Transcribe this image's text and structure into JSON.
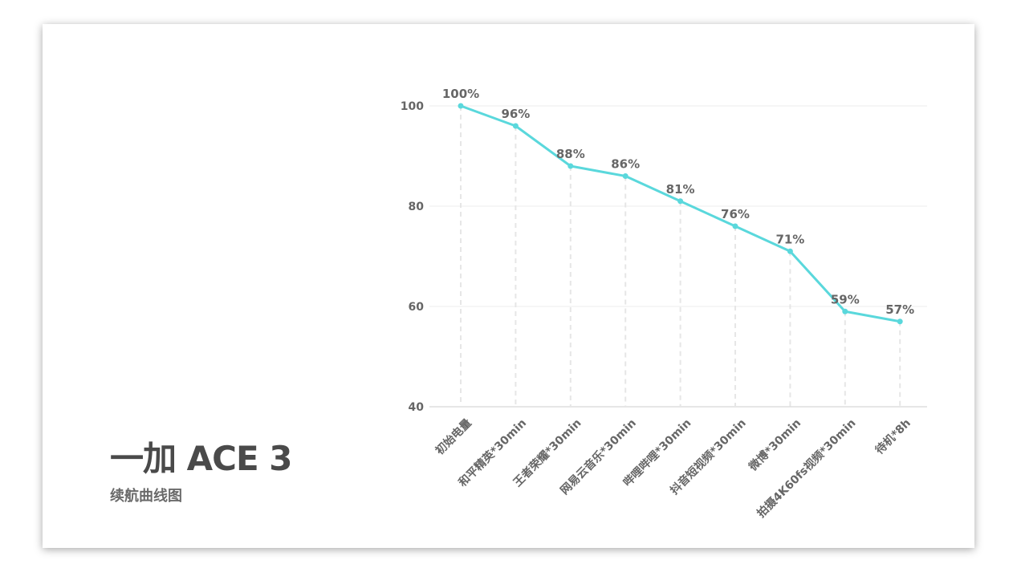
{
  "title": "一加 ACE 3",
  "subtitle": "续航曲线图",
  "chart_data": {
    "type": "line",
    "title": "续航曲线图",
    "categories": [
      "初始电量",
      "和平精英*30min",
      "王者荣耀*30min",
      "网易云音乐*30min",
      "哔哩哔哩*30min",
      "抖音短视频*30min",
      "微博*30min",
      "拍摄4K60fs视频*30min",
      "待机*8h"
    ],
    "values": [
      100,
      96,
      88,
      86,
      81,
      76,
      71,
      59,
      57
    ],
    "data_labels": [
      "100%",
      "96%",
      "88%",
      "86%",
      "81%",
      "76%",
      "71%",
      "59%",
      "57%"
    ],
    "yticks": [
      40,
      60,
      80,
      100
    ],
    "ylim": [
      40,
      100
    ],
    "xlabel": "",
    "ylabel": "",
    "grid": true,
    "line_color": "#5ad8dc"
  }
}
